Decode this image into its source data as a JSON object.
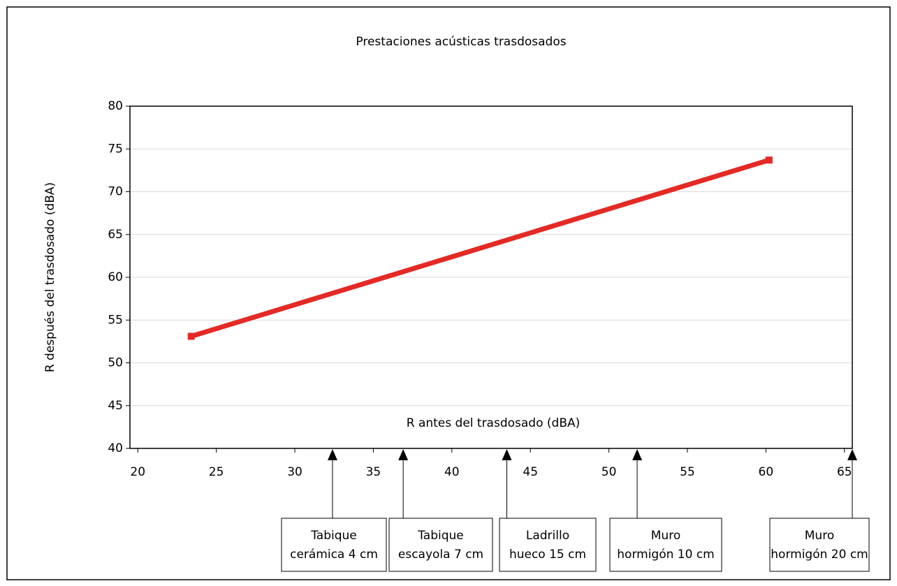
{
  "chart_data": {
    "type": "line",
    "title": "Prestaciones acústicas trasdosados",
    "xlabel": "R antes del trasdosado  (dBA)",
    "ylabel": "R después del trasdosado  (dBA)",
    "x": [
      23.4,
      60.2
    ],
    "series": [
      {
        "color": "#e32a26",
        "values": [
          53.1,
          73.7
        ]
      }
    ],
    "xlim": [
      19.5,
      65.5
    ],
    "xticks": [
      20,
      25,
      30,
      35,
      40,
      45,
      50,
      55,
      60,
      65
    ],
    "ylim": [
      40,
      80
    ],
    "yticks": [
      40,
      45,
      50,
      55,
      60,
      65,
      70,
      75,
      80
    ],
    "grid": true,
    "annotations": [
      {
        "lines": [
          "Tabique",
          "cerámica 4 cm"
        ],
        "x": 32.4
      },
      {
        "lines": [
          "Tabique",
          "escayola 7 cm"
        ],
        "x": 36.9
      },
      {
        "lines": [
          "Ladrillo",
          "hueco 15 cm"
        ],
        "x": 43.5
      },
      {
        "lines": [
          "Muro",
          "hormigón 10 cm"
        ],
        "x": 51.8
      },
      {
        "lines": [
          "Muro",
          "hormigón 20 cm"
        ],
        "x": 65.5
      }
    ]
  }
}
